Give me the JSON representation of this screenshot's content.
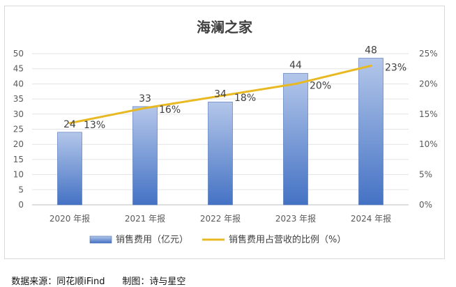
{
  "chart_data": {
    "type": "bar",
    "title": "海澜之家",
    "categories": [
      "2020 年报",
      "2021 年报",
      "2022 年报",
      "2023 年报",
      "2024 年报"
    ],
    "series": [
      {
        "name": "销售费用（亿元）",
        "type": "bar",
        "axis": "left",
        "values": [
          24,
          32.5,
          34,
          43.5,
          48.5
        ],
        "labels": [
          "24",
          "33",
          "34",
          "44",
          "48"
        ]
      },
      {
        "name": "销售费用占营收的比例（%）",
        "type": "line",
        "axis": "right",
        "values": [
          13.5,
          16,
          18,
          20,
          23
        ],
        "labels": [
          "13%",
          "16%",
          "18%",
          "20%",
          "23%"
        ]
      }
    ],
    "y_left": {
      "min": 0,
      "max": 50,
      "ticks": [
        "0",
        "5",
        "10",
        "15",
        "20",
        "25",
        "30",
        "35",
        "40",
        "45",
        "50"
      ]
    },
    "y_right": {
      "min": 0,
      "max": 25,
      "ticks": [
        "0%",
        "5%",
        "10%",
        "15%",
        "20%",
        "25%"
      ]
    },
    "legend_position": "bottom",
    "colors": {
      "bar_top": "#b4c7ea",
      "bar_bottom": "#4472c4",
      "bar_edge": "#4a6fb5",
      "line": "#e8b923"
    }
  },
  "footer": {
    "source": "数据来源：同花顺iFind",
    "maker": "制图：诗与星空"
  }
}
